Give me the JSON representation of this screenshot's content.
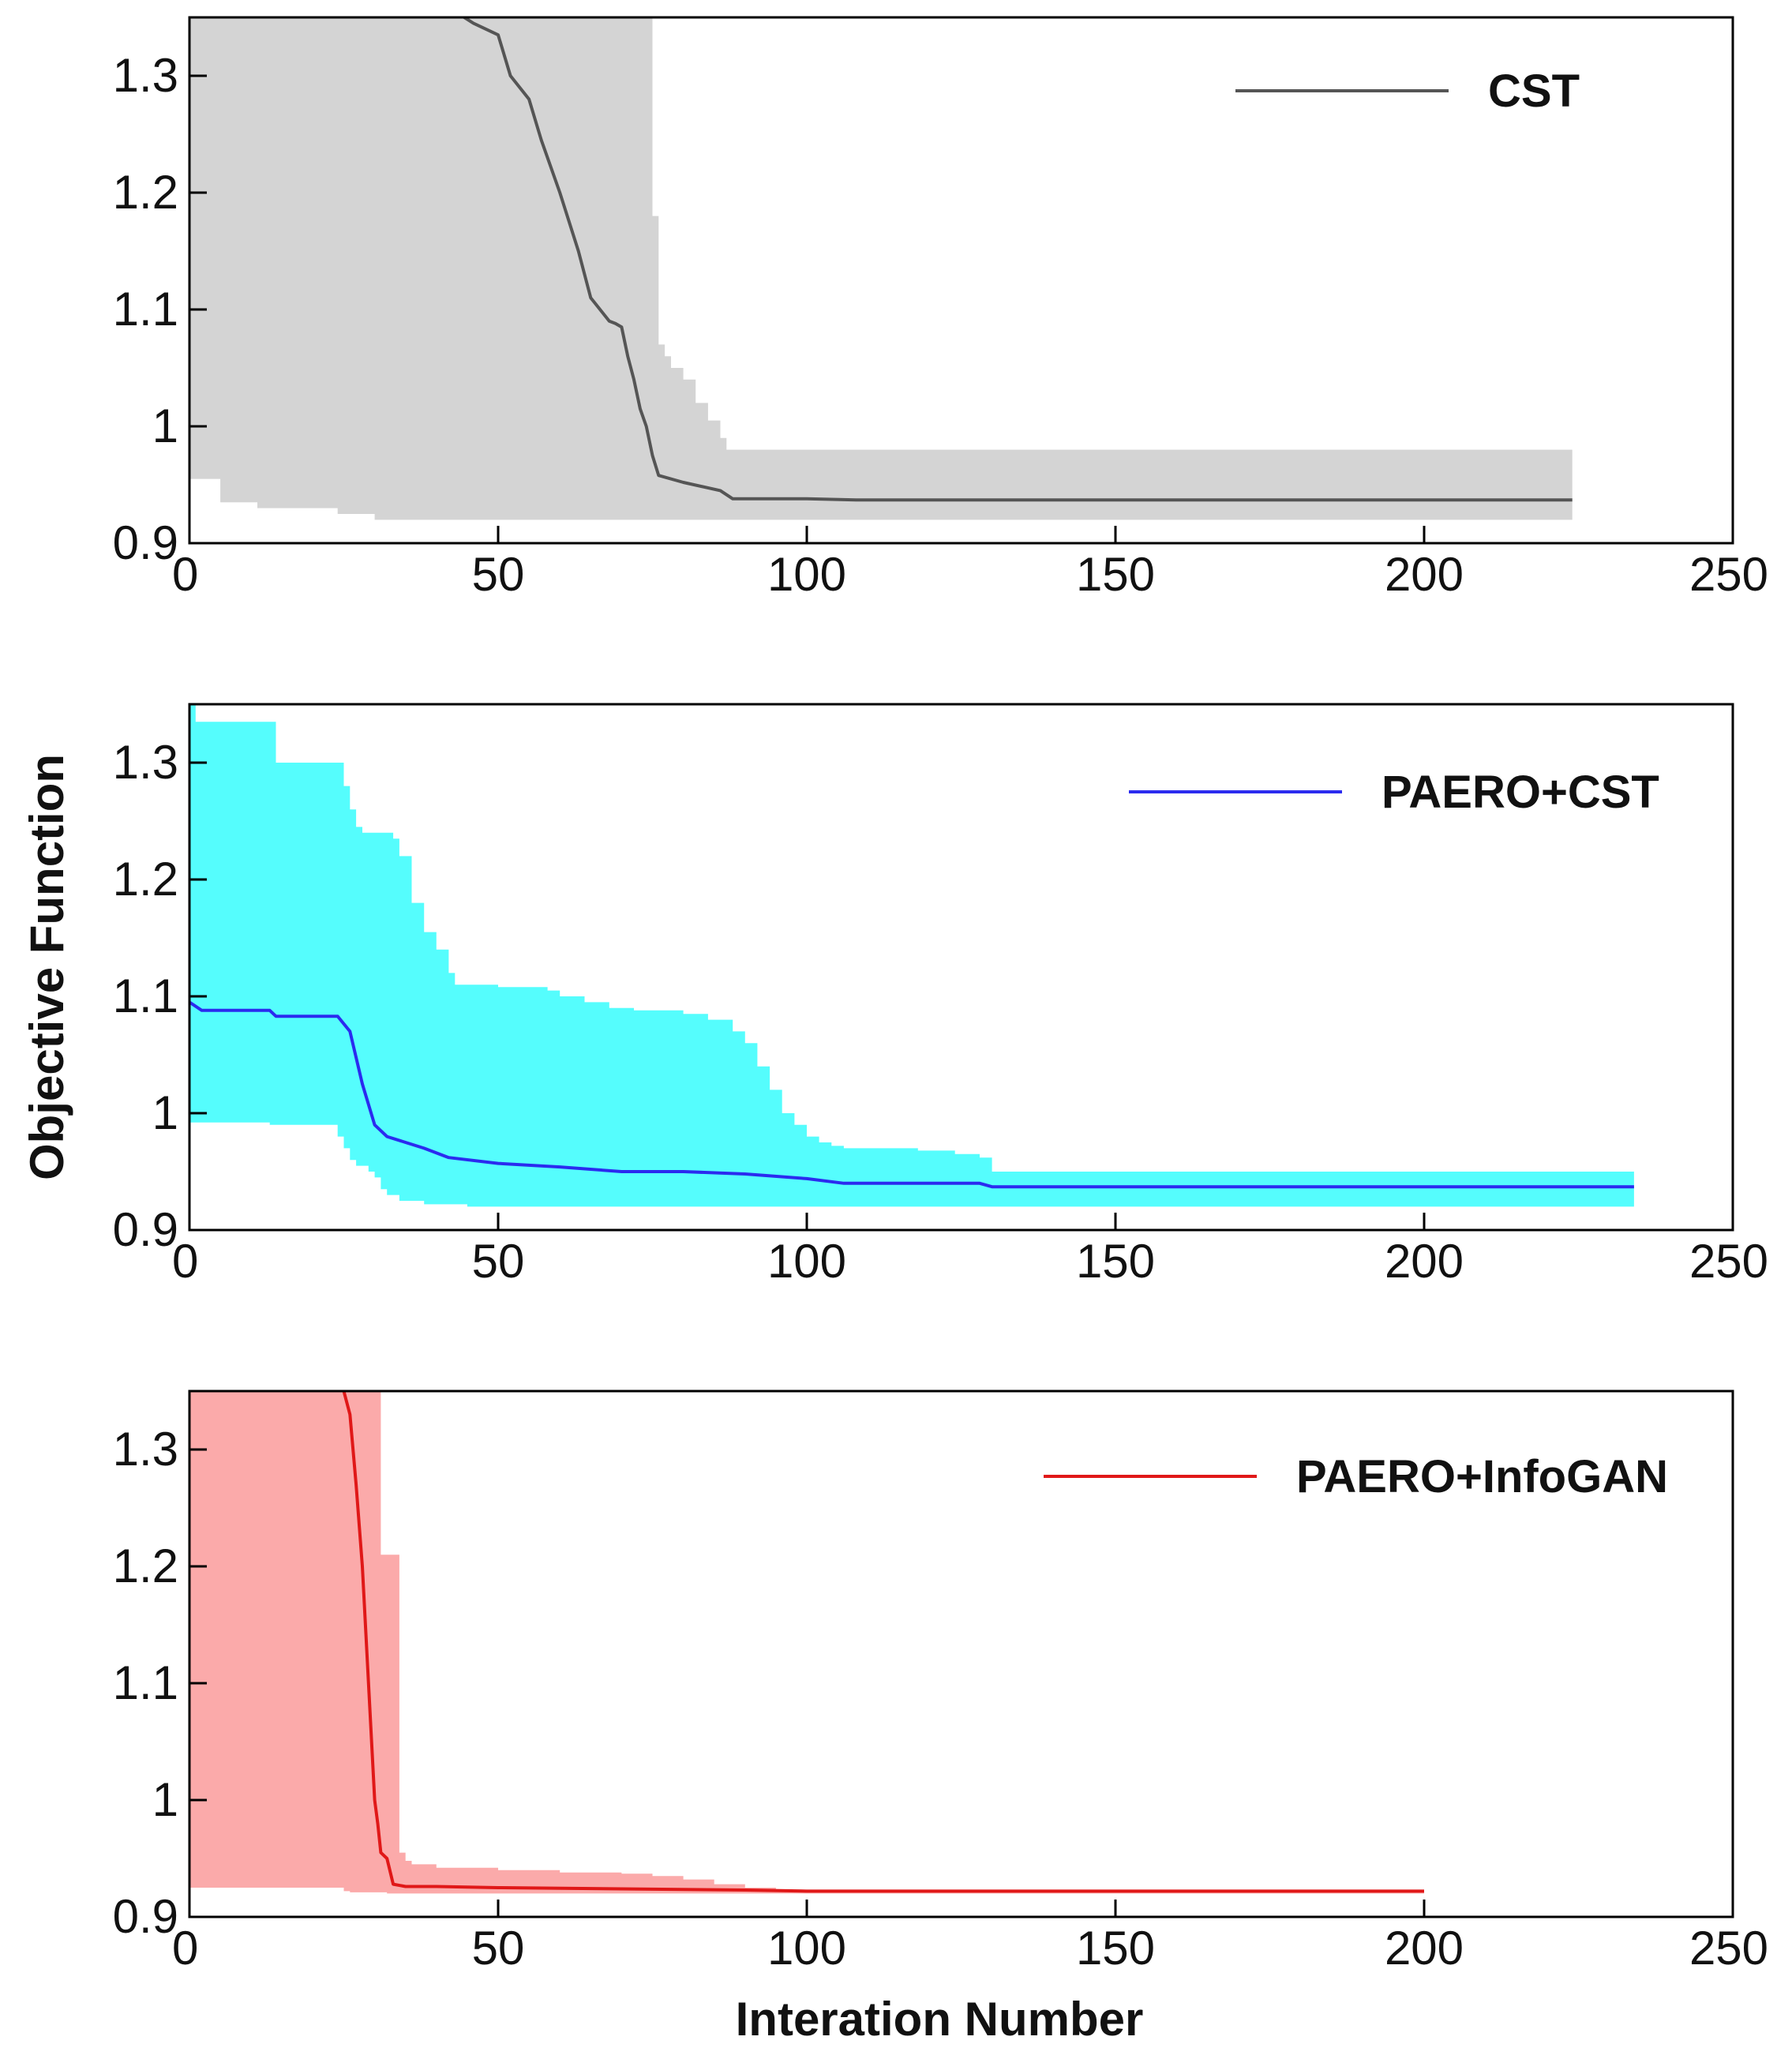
{
  "figure": {
    "ylabel": "Objective Function",
    "xlabel": "Interation Number"
  },
  "chart_data": [
    {
      "type": "line",
      "legend": "CST",
      "color": "#555555",
      "band_color": "#d4d4d4",
      "xlim": [
        0,
        250
      ],
      "ylim": [
        0.9,
        1.35
      ],
      "xticks": [
        0,
        50,
        100,
        150,
        200,
        250
      ],
      "yticks": [
        0.9,
        1,
        1.1,
        1.2,
        1.3
      ],
      "xtick_labels": [
        "0",
        "50",
        "100",
        "150",
        "200",
        "250"
      ],
      "ytick_labels": [
        "0.9",
        "1",
        "1.1",
        "1.2",
        "1.3"
      ],
      "mean": {
        "x": [
          43,
          46,
          50,
          52,
          55,
          57,
          60,
          63,
          65,
          68,
          69,
          70,
          71,
          72,
          73,
          74,
          75,
          76,
          80,
          86,
          88,
          100,
          108,
          150,
          200,
          224
        ],
        "y": [
          1.355,
          1.345,
          1.335,
          1.3,
          1.28,
          1.245,
          1.2,
          1.15,
          1.11,
          1.09,
          1.088,
          1.085,
          1.06,
          1.04,
          1.015,
          1.0,
          0.975,
          0.958,
          0.952,
          0.945,
          0.938,
          0.938,
          0.937,
          0.937,
          0.937,
          0.937
        ]
      },
      "band_upper": {
        "x": [
          0,
          74,
          75,
          76,
          77,
          78,
          80,
          82,
          84,
          86,
          87,
          224
        ],
        "y": [
          1.35,
          1.35,
          1.18,
          1.07,
          1.06,
          1.05,
          1.04,
          1.02,
          1.005,
          0.99,
          0.98,
          0.98
        ]
      },
      "band_lower": {
        "x": [
          0,
          5,
          11,
          24,
          30,
          35,
          224
        ],
        "y": [
          0.955,
          0.955,
          0.935,
          0.93,
          0.925,
          0.92,
          0.92
        ]
      }
    },
    {
      "type": "line",
      "legend": "PAERO+CST",
      "color": "#2b2bef",
      "band_color": "#55fdfd",
      "xlim": [
        0,
        250
      ],
      "ylim": [
        0.9,
        1.35
      ],
      "xticks": [
        0,
        50,
        100,
        150,
        200,
        250
      ],
      "yticks": [
        0.9,
        1,
        1.1,
        1.2,
        1.3
      ],
      "xtick_labels": [
        "0",
        "50",
        "100",
        "150",
        "200",
        "250"
      ],
      "ytick_labels": [
        "0.9",
        "1",
        "1.1",
        "1.2",
        "1.3"
      ],
      "mean": {
        "x": [
          0,
          2,
          13,
          14,
          24,
          26,
          28,
          30,
          32,
          35,
          38,
          42,
          50,
          60,
          70,
          80,
          90,
          100,
          106,
          128,
          130,
          150,
          200,
          234
        ],
        "y": [
          1.095,
          1.088,
          1.088,
          1.083,
          1.083,
          1.07,
          1.025,
          0.99,
          0.98,
          0.975,
          0.97,
          0.962,
          0.957,
          0.954,
          0.95,
          0.95,
          0.948,
          0.944,
          0.94,
          0.94,
          0.937,
          0.937,
          0.937,
          0.937
        ]
      },
      "band_upper": {
        "x": [
          0,
          1,
          13,
          14,
          24,
          25,
          26,
          27,
          28,
          33,
          34,
          36,
          38,
          40,
          42,
          43,
          50,
          58,
          60,
          64,
          68,
          72,
          80,
          84,
          88,
          90,
          92,
          94,
          96,
          98,
          100,
          102,
          104,
          106,
          118,
          124,
          128,
          130,
          150,
          234
        ],
        "y": [
          1.35,
          1.335,
          1.335,
          1.3,
          1.3,
          1.28,
          1.26,
          1.245,
          1.24,
          1.235,
          1.22,
          1.18,
          1.155,
          1.14,
          1.12,
          1.11,
          1.108,
          1.105,
          1.1,
          1.095,
          1.09,
          1.088,
          1.085,
          1.08,
          1.07,
          1.06,
          1.04,
          1.02,
          1.0,
          0.99,
          0.98,
          0.975,
          0.972,
          0.97,
          0.968,
          0.965,
          0.962,
          0.95,
          0.95,
          0.95
        ]
      },
      "band_lower": {
        "x": [
          0,
          13,
          14,
          24,
          25,
          26,
          27,
          29,
          30,
          31,
          32,
          34,
          38,
          45,
          60,
          100,
          234
        ],
        "y": [
          0.992,
          0.992,
          0.99,
          0.99,
          0.98,
          0.97,
          0.96,
          0.955,
          0.95,
          0.945,
          0.935,
          0.93,
          0.925,
          0.922,
          0.92,
          0.92,
          0.92
        ]
      }
    },
    {
      "type": "line",
      "legend": "PAERO+InfoGAN",
      "color": "#e01818",
      "band_color": "#fbaaaa",
      "xlim": [
        0,
        250
      ],
      "ylim": [
        0.9,
        1.35
      ],
      "xticks": [
        0,
        50,
        100,
        150,
        200,
        250
      ],
      "yticks": [
        0.9,
        1,
        1.1,
        1.2,
        1.3
      ],
      "xtick_labels": [
        "0",
        "50",
        "100",
        "150",
        "200",
        "250"
      ],
      "ytick_labels": [
        "0.9",
        "1",
        "1.1",
        "1.2",
        "1.3"
      ],
      "mean": {
        "x": [
          25,
          26,
          27,
          28,
          29,
          30,
          30.5,
          31,
          32,
          33,
          35,
          40,
          50,
          70,
          90,
          100,
          150,
          200
        ],
        "y": [
          1.35,
          1.33,
          1.27,
          1.2,
          1.1,
          1.0,
          0.98,
          0.955,
          0.95,
          0.928,
          0.926,
          0.926,
          0.925,
          0.924,
          0.923,
          0.922,
          0.922,
          0.922
        ]
      },
      "band_upper": {
        "x": [
          0,
          30,
          31,
          33,
          34,
          35,
          36,
          40,
          50,
          60,
          70,
          75,
          80,
          85,
          90,
          95,
          200
        ],
        "y": [
          1.35,
          1.35,
          1.21,
          1.21,
          0.955,
          0.948,
          0.945,
          0.942,
          0.94,
          0.938,
          0.937,
          0.935,
          0.932,
          0.928,
          0.925,
          0.922,
          0.922
        ]
      },
      "band_lower": {
        "x": [
          0,
          25,
          26,
          32,
          34,
          40,
          60,
          90,
          200
        ],
        "y": [
          0.925,
          0.925,
          0.922,
          0.921,
          0.92,
          0.92,
          0.92,
          0.92,
          0.92
        ]
      }
    }
  ]
}
